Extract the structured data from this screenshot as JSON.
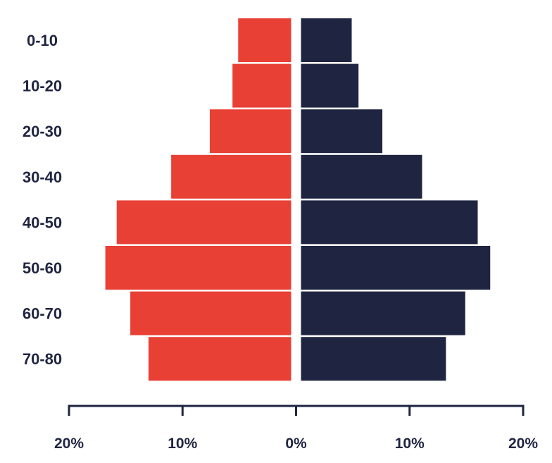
{
  "chart_data": {
    "type": "bar",
    "orientation": "horizontal",
    "layout": "population-pyramid",
    "categories": [
      "0-10",
      "10-20",
      "20-30",
      "30-40",
      "40-50",
      "50-60",
      "60-70",
      "70-80"
    ],
    "series": [
      {
        "side": "left",
        "color": "#e84035",
        "values": [
          5.1,
          5.6,
          7.6,
          11.0,
          15.8,
          16.8,
          14.6,
          13.0
        ]
      },
      {
        "side": "right",
        "color": "#1f2541",
        "values": [
          4.9,
          5.5,
          7.6,
          11.1,
          16.0,
          17.1,
          14.9,
          13.2
        ]
      }
    ],
    "x_ticks": [
      {
        "value": -20,
        "label": "20%"
      },
      {
        "value": -10,
        "label": "10%"
      },
      {
        "value": 0,
        "label": "0%"
      },
      {
        "value": 10,
        "label": "10%"
      },
      {
        "value": 20,
        "label": "20%"
      }
    ],
    "xlim": [
      -20,
      20
    ],
    "axis_color": "#1f2541",
    "grid": false,
    "legend": "none"
  }
}
